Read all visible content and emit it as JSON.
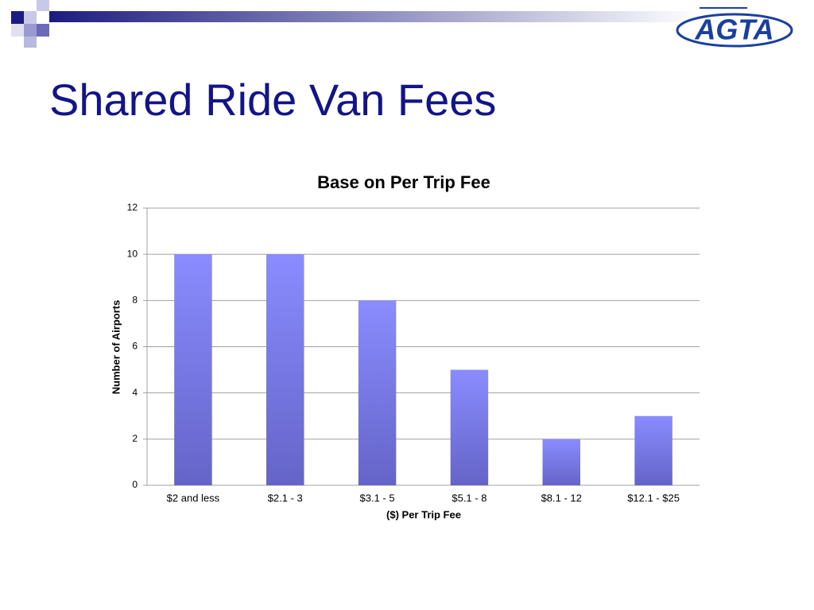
{
  "logo": "AGTA",
  "slide_title": "Shared Ride Van Fees",
  "chart_data": {
    "type": "bar",
    "title": "Base on Per Trip Fee",
    "x_label": "($) Per Trip Fee",
    "y_label": "Number of Airports",
    "categories": [
      "$2 and less",
      "$2.1 - 3",
      "$3.1 - 5",
      "$5.1 - 8",
      "$8.1 - 12",
      "$12.1 - $25"
    ],
    "values": [
      10,
      10,
      8,
      5,
      2,
      3
    ],
    "color": "#7a7cf0",
    "ylim": [
      0,
      12
    ],
    "yticks": [
      0,
      2,
      4,
      6,
      8,
      10,
      12
    ],
    "grid": true
  }
}
